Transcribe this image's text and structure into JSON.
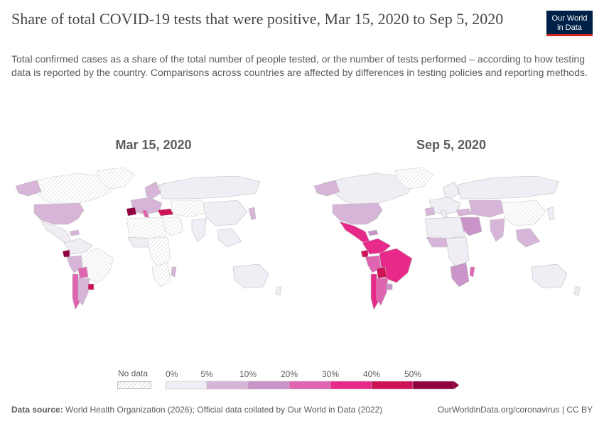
{
  "header": {
    "title": "Share of total COVID-19 tests that were positive, Mar 15, 2020 to Sep 5, 2020",
    "subtitle": "Total confirmed cases as a share of the total number of people tested, or the number of tests performed – according to how testing data is reported by the country. Comparisons across countries are affected by differences in testing policies and reporting methods.",
    "logo_line1": "Our World",
    "logo_line2": "in Data"
  },
  "maps": {
    "left_title": "Mar 15, 2020",
    "right_title": "Sep 5, 2020"
  },
  "legend": {
    "no_data_label": "No data",
    "bins": [
      {
        "label": "0%",
        "color": "#f0edf5"
      },
      {
        "label": "5%",
        "color": "#d7b5d8"
      },
      {
        "label": "10%",
        "color": "#c994c7"
      },
      {
        "label": "20%",
        "color": "#df65b0"
      },
      {
        "label": "30%",
        "color": "#e7298a"
      },
      {
        "label": "40%",
        "color": "#ce1256"
      },
      {
        "label": "50%",
        "color": "#91003f"
      }
    ]
  },
  "footer": {
    "source_label": "Data source:",
    "source_text": "World Health Organization (2026); Official data collated by Our World in Data (2022)",
    "url": "OurWorldinData.org/coronavirus | CC BY"
  },
  "colors": {
    "no_data_stroke": "#cfcfcf",
    "land_base": "#ffffff",
    "border": "#bdbdbd"
  }
}
